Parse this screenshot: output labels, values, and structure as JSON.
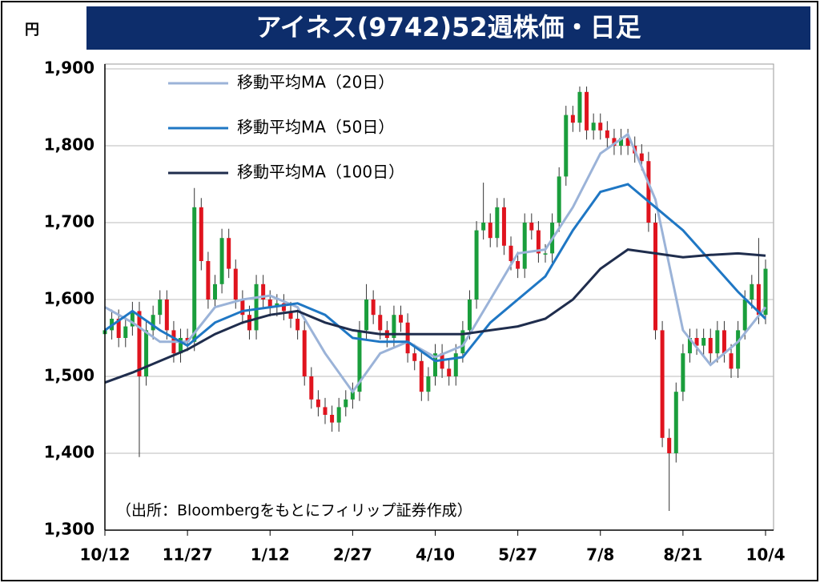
{
  "chart_data": {
    "type": "candlestick",
    "title": "アイネス(9742)52週株価・日足",
    "y_unit": "円",
    "note": "（出所：Bloombergをもとにフィリップ証券作成）",
    "xlim": [
      0,
      96
    ],
    "xticks": [
      {
        "value": 0,
        "label": "10/12"
      },
      {
        "value": 12,
        "label": "11/27"
      },
      {
        "value": 24,
        "label": "1/12"
      },
      {
        "value": 36,
        "label": "2/27"
      },
      {
        "value": 48,
        "label": "4/10"
      },
      {
        "value": 60,
        "label": "5/27"
      },
      {
        "value": 72,
        "label": "7/8"
      },
      {
        "value": 84,
        "label": "8/21"
      },
      {
        "value": 96,
        "label": "10/4"
      }
    ],
    "ylim": [
      1300,
      1900
    ],
    "yticks": [
      {
        "value": 1300,
        "label": "1,300"
      },
      {
        "value": 1400,
        "label": "1,400"
      },
      {
        "value": 1500,
        "label": "1,500"
      },
      {
        "value": 1600,
        "label": "1,600"
      },
      {
        "value": 1700,
        "label": "1,700"
      },
      {
        "value": 1800,
        "label": "1,800"
      },
      {
        "value": 1900,
        "label": "1,900"
      }
    ],
    "grid": true,
    "up_color": "#1a9e3c",
    "down_color": "#e0141e",
    "candles": {
      "open": [
        1555,
        1560,
        1575,
        1550,
        1565,
        1585,
        1500,
        1560,
        1580,
        1600,
        1560,
        1530,
        1550,
        1545,
        1720,
        1650,
        1600,
        1620,
        1680,
        1640,
        1600,
        1580,
        1560,
        1620,
        1600,
        1590,
        1595,
        1585,
        1575,
        1560,
        1500,
        1470,
        1460,
        1450,
        1440,
        1460,
        1470,
        1480,
        1560,
        1600,
        1580,
        1560,
        1550,
        1580,
        1570,
        1530,
        1520,
        1480,
        1500,
        1530,
        1510,
        1500,
        1530,
        1560,
        1600,
        1690,
        1700,
        1680,
        1720,
        1670,
        1650,
        1640,
        1700,
        1690,
        1660,
        1660,
        1700,
        1760,
        1840,
        1830,
        1870,
        1820,
        1830,
        1820,
        1810,
        1800,
        1810,
        1800,
        1790,
        1780,
        1700,
        1560,
        1420,
        1400,
        1480,
        1530,
        1550,
        1540,
        1550,
        1530,
        1560,
        1530,
        1510,
        1560,
        1600,
        1620,
        1580
      ],
      "high": [
        1572,
        1587,
        1587,
        1577,
        1597,
        1597,
        1572,
        1592,
        1612,
        1612,
        1572,
        1562,
        1562,
        1745,
        1732,
        1662,
        1632,
        1692,
        1692,
        1652,
        1612,
        1592,
        1632,
        1632,
        1612,
        1607,
        1607,
        1597,
        1587,
        1572,
        1512,
        1482,
        1472,
        1462,
        1472,
        1482,
        1492,
        1572,
        1620,
        1612,
        1592,
        1572,
        1592,
        1592,
        1582,
        1542,
        1532,
        1512,
        1542,
        1542,
        1522,
        1542,
        1572,
        1612,
        1702,
        1752,
        1712,
        1732,
        1732,
        1682,
        1662,
        1712,
        1712,
        1702,
        1672,
        1712,
        1772,
        1852,
        1852,
        1877,
        1877,
        1842,
        1842,
        1832,
        1822,
        1822,
        1822,
        1812,
        1802,
        1792,
        1712,
        1572,
        1432,
        1492,
        1542,
        1562,
        1562,
        1562,
        1562,
        1572,
        1572,
        1542,
        1572,
        1612,
        1632,
        1680,
        1652
      ],
      "low": [
        1543,
        1548,
        1538,
        1538,
        1553,
        1395,
        1488,
        1548,
        1568,
        1548,
        1518,
        1518,
        1533,
        1533,
        1638,
        1588,
        1588,
        1608,
        1628,
        1588,
        1568,
        1548,
        1548,
        1588,
        1578,
        1578,
        1573,
        1563,
        1548,
        1488,
        1458,
        1448,
        1438,
        1428,
        1428,
        1448,
        1458,
        1468,
        1548,
        1568,
        1548,
        1538,
        1538,
        1558,
        1518,
        1508,
        1468,
        1468,
        1488,
        1498,
        1488,
        1488,
        1518,
        1548,
        1588,
        1678,
        1668,
        1668,
        1658,
        1638,
        1628,
        1628,
        1678,
        1648,
        1648,
        1648,
        1688,
        1748,
        1818,
        1818,
        1808,
        1808,
        1808,
        1798,
        1788,
        1788,
        1788,
        1778,
        1768,
        1688,
        1548,
        1408,
        1325,
        1388,
        1468,
        1518,
        1528,
        1528,
        1518,
        1518,
        1518,
        1498,
        1498,
        1548,
        1588,
        1568,
        1568
      ],
      "close": [
        1560,
        1575,
        1550,
        1565,
        1585,
        1500,
        1560,
        1580,
        1600,
        1560,
        1530,
        1550,
        1545,
        1720,
        1650,
        1600,
        1620,
        1680,
        1640,
        1600,
        1580,
        1560,
        1620,
        1600,
        1590,
        1595,
        1585,
        1575,
        1560,
        1500,
        1470,
        1460,
        1450,
        1440,
        1460,
        1470,
        1480,
        1560,
        1600,
        1580,
        1560,
        1550,
        1580,
        1570,
        1530,
        1520,
        1480,
        1500,
        1530,
        1510,
        1500,
        1530,
        1560,
        1600,
        1690,
        1700,
        1680,
        1720,
        1670,
        1650,
        1640,
        1700,
        1690,
        1660,
        1660,
        1700,
        1760,
        1840,
        1830,
        1870,
        1820,
        1830,
        1820,
        1810,
        1800,
        1810,
        1800,
        1790,
        1780,
        1700,
        1560,
        1420,
        1400,
        1480,
        1530,
        1550,
        1540,
        1550,
        1530,
        1560,
        1530,
        1510,
        1560,
        1600,
        1620,
        1580,
        1640
      ]
    },
    "series": [
      {
        "name": "移動平均MA（20日）",
        "color": "#9bb3d8",
        "x": [
          0,
          4,
          8,
          12,
          16,
          20,
          24,
          28,
          32,
          36,
          40,
          44,
          48,
          52,
          56,
          60,
          64,
          68,
          72,
          76,
          80,
          84,
          88,
          92,
          96
        ],
        "values": [
          1590,
          1570,
          1545,
          1545,
          1590,
          1600,
          1605,
          1590,
          1530,
          1480,
          1530,
          1545,
          1525,
          1540,
          1600,
          1660,
          1665,
          1720,
          1790,
          1815,
          1730,
          1560,
          1515,
          1545,
          1590
        ]
      },
      {
        "name": "移動平均MA（50日）",
        "color": "#1f77c4",
        "x": [
          0,
          4,
          8,
          12,
          16,
          20,
          24,
          28,
          32,
          36,
          40,
          44,
          48,
          52,
          56,
          60,
          64,
          68,
          72,
          76,
          80,
          84,
          88,
          92,
          96
        ],
        "values": [
          1560,
          1585,
          1560,
          1540,
          1570,
          1585,
          1590,
          1595,
          1580,
          1550,
          1545,
          1545,
          1520,
          1525,
          1570,
          1600,
          1630,
          1690,
          1740,
          1750,
          1720,
          1690,
          1650,
          1610,
          1575
        ]
      },
      {
        "name": "移動平均MA（100日）",
        "color": "#1f2d4d",
        "x": [
          0,
          4,
          8,
          12,
          16,
          20,
          24,
          28,
          32,
          36,
          40,
          44,
          48,
          52,
          56,
          60,
          64,
          68,
          72,
          76,
          80,
          84,
          88,
          92,
          96
        ],
        "values": [
          1492,
          1505,
          1520,
          1535,
          1555,
          1570,
          1580,
          1585,
          1570,
          1560,
          1555,
          1555,
          1555,
          1555,
          1560,
          1565,
          1575,
          1600,
          1640,
          1665,
          1660,
          1655,
          1658,
          1660,
          1657
        ]
      }
    ]
  }
}
